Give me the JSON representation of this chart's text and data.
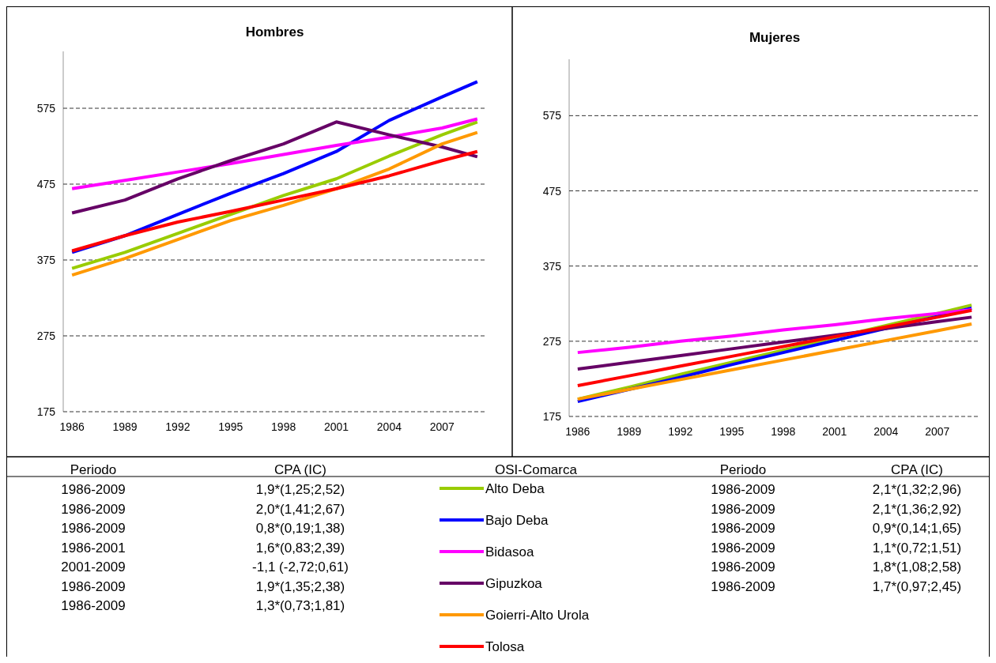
{
  "chart_data": [
    {
      "type": "line",
      "title": "Hombres",
      "x": [
        1986,
        1989,
        1992,
        1995,
        1998,
        2001,
        2004,
        2007,
        2009
      ],
      "xlim": [
        1985.5,
        2009.5
      ],
      "xticks": [
        1986,
        1989,
        1992,
        1995,
        1998,
        2001,
        2004,
        2007
      ],
      "ylim": [
        175,
        650
      ],
      "yticks": [
        175,
        275,
        375,
        475,
        575
      ],
      "grid": "y",
      "legend": "bottom",
      "legend_title": "OSI-Comarca",
      "series": [
        {
          "name": "Alto Deba",
          "color": "#99cc00",
          "values": [
            364,
            385,
            410,
            435,
            460,
            482,
            512,
            540,
            557
          ]
        },
        {
          "name": "Bajo Deba",
          "color": "#0000ff",
          "values": [
            385,
            407,
            435,
            463,
            489,
            518,
            559,
            590,
            610
          ]
        },
        {
          "name": "Bidasoa",
          "color": "#ff00ff",
          "values": [
            469,
            480,
            491,
            502,
            514,
            526,
            537,
            549,
            561
          ]
        },
        {
          "name": "Gipuzkoa",
          "color": "#660066",
          "values": [
            437,
            454,
            482,
            506,
            528,
            557,
            540,
            524,
            511
          ]
        },
        {
          "name": "Goierri-Alto Urola",
          "color": "#ff9900",
          "values": [
            355,
            377,
            402,
            427,
            447,
            469,
            495,
            528,
            543
          ]
        },
        {
          "name": "Tolosa",
          "color": "#ff0000",
          "values": [
            387,
            407,
            425,
            439,
            454,
            469,
            486,
            506,
            518
          ]
        }
      ],
      "annotations": [
        "Periodo",
        "CPA (IC)",
        "1986-2009",
        "1,9*(1,25;2,52)",
        "1986-2009",
        "2,0*(1,41;2,67)",
        "1986-2009",
        "0,8*(0,19;1,38)",
        "1986-2001",
        "1,6*(0,83;2,39)",
        "2001-2009",
        "-1,1 (-2,72;0,61)",
        "1986-2009",
        "1,9*(1,35;2,38)",
        "1986-2009",
        "1,3*(0,73;1,81)"
      ]
    },
    {
      "type": "line",
      "title": "Mujeres",
      "x": [
        1986,
        1989,
        1992,
        1995,
        1998,
        2001,
        2004,
        2007,
        2009
      ],
      "xlim": [
        1985.5,
        2009.5
      ],
      "xticks": [
        1986,
        1989,
        1992,
        1995,
        1998,
        2001,
        2004,
        2007
      ],
      "ylim": [
        175,
        650
      ],
      "yticks": [
        175,
        275,
        375,
        475,
        575
      ],
      "grid": "y",
      "series": [
        {
          "color": "#99cc00",
          "values": [
            198,
            214,
            231,
            247,
            263,
            280,
            296,
            312,
            323
          ]
        },
        {
          "color": "#0000ff",
          "values": [
            195,
            211,
            227,
            244,
            260,
            276,
            292,
            308,
            319
          ]
        },
        {
          "color": "#ff00ff",
          "values": [
            260,
            267,
            275,
            282,
            290,
            297,
            305,
            312,
            317
          ]
        },
        {
          "color": "#660066",
          "values": [
            238,
            247,
            256,
            265,
            274,
            283,
            292,
            301,
            307
          ]
        },
        {
          "color": "#ff9900",
          "values": [
            198,
            211,
            224,
            237,
            250,
            263,
            276,
            289,
            298
          ]
        },
        {
          "color": "#ff0000",
          "values": [
            216,
            229,
            242,
            255,
            268,
            281,
            294,
            307,
            316
          ]
        }
      ],
      "annotations": [
        "Periodo",
        "CPA (IC)",
        "1986-2009",
        "2,1*(1,32;2,96)",
        "1986-2009",
        "2,1*(1,36;2,92)",
        "1986-2009",
        "0,9*(0,14;1,65)",
        "1986-2009",
        "1,1*(0,72;1,51)",
        "1986-2009",
        "1,8*(1,08;2,58)",
        "1986-2009",
        "1,7*(0,97;2,45)"
      ]
    }
  ]
}
